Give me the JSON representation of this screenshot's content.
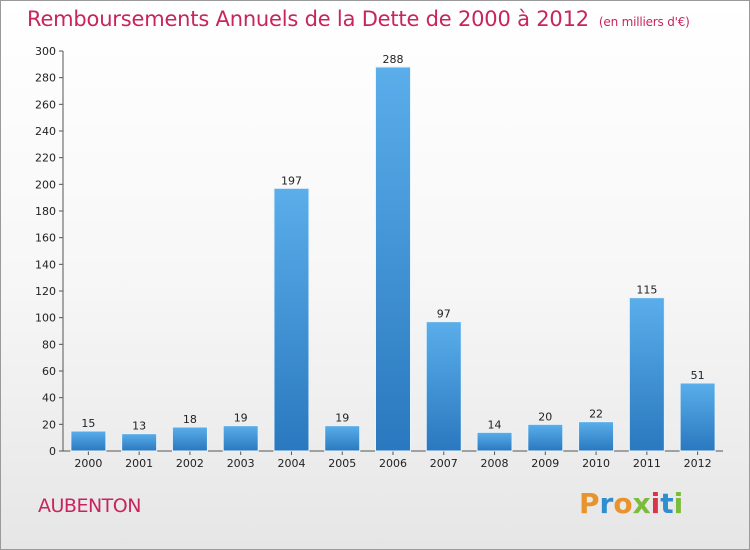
{
  "chart_data": {
    "type": "bar",
    "title": "Remboursements Annuels de la Dette de 2000 à 2012",
    "subtitle": "(en milliers d'€)",
    "categories": [
      "2000",
      "2001",
      "2002",
      "2003",
      "2004",
      "2005",
      "2006",
      "2007",
      "2008",
      "2009",
      "2010",
      "2011",
      "2012"
    ],
    "values": [
      15,
      13,
      18,
      19,
      197,
      19,
      288,
      97,
      14,
      20,
      22,
      115,
      51
    ],
    "ylim": [
      0,
      300
    ],
    "yticks": [
      0,
      20,
      40,
      60,
      80,
      100,
      120,
      140,
      160,
      180,
      200,
      220,
      240,
      260,
      280,
      300
    ],
    "grid": false,
    "bar_color": "#3d8fd6"
  },
  "footer": {
    "town": "AUBENTON",
    "logo": "Proxiti"
  },
  "colors": {
    "accent": "#c8245e",
    "logo_letters": [
      "#e9932d",
      "#2f8ed0",
      "#e9932d",
      "#7cbc3b",
      "#d9344a",
      "#2f8ed0",
      "#7cbc3b"
    ]
  }
}
